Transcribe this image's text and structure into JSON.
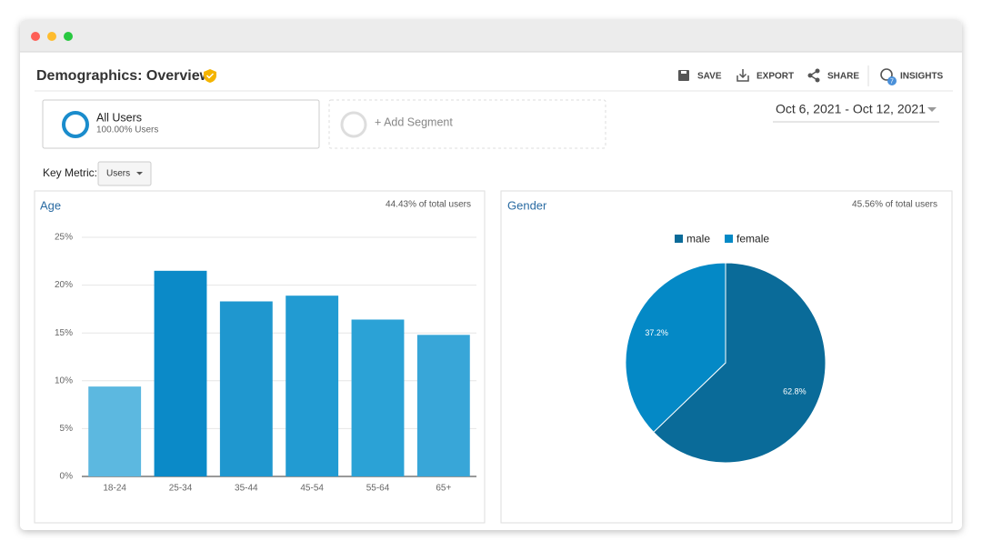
{
  "header": {
    "title": "Demographics: Overview"
  },
  "toolbar": {
    "items": [
      "SAVE",
      "EXPORT",
      "SHARE",
      "INSIGHTS"
    ],
    "insights_badge": "7"
  },
  "segments": [
    {
      "name": "All Users",
      "detail": "100.00% Users"
    },
    {
      "name": "+ Add Segment"
    }
  ],
  "date_range": "Oct 6, 2021 - Oct 12, 2021",
  "key_metric": {
    "label": "Key Metric:",
    "value": "Users"
  },
  "chart_data": [
    {
      "type": "bar",
      "title": "Age",
      "subtitle": "44.43% of total users",
      "categories": [
        "18-24",
        "25-34",
        "35-44",
        "45-54",
        "55-64",
        "65+"
      ],
      "values": [
        9.4,
        21.5,
        18.3,
        18.9,
        16.4,
        14.8
      ],
      "colors": [
        "#5cb8e0",
        "#0b8ac8",
        "#1f97cf",
        "#229bd2",
        "#2ba2d6",
        "#38a6d8"
      ],
      "ylim": [
        0,
        25
      ],
      "yticks": [
        {
          "value": 0,
          "label": "0%"
        },
        {
          "value": 5,
          "label": "5%"
        },
        {
          "value": 10,
          "label": "10%"
        },
        {
          "value": 15,
          "label": "15%"
        },
        {
          "value": 20,
          "label": "20%"
        },
        {
          "value": 25,
          "label": "25%"
        }
      ],
      "grid": true
    },
    {
      "type": "pie",
      "title": "Gender",
      "subtitle": "45.56% of total users",
      "categories": [
        "male",
        "female"
      ],
      "values": [
        62.8,
        37.2
      ],
      "value_labels": [
        "62.8%",
        "37.2%"
      ],
      "colors": [
        "#0a6b99",
        "#0489c6"
      ],
      "legend": "top"
    }
  ]
}
